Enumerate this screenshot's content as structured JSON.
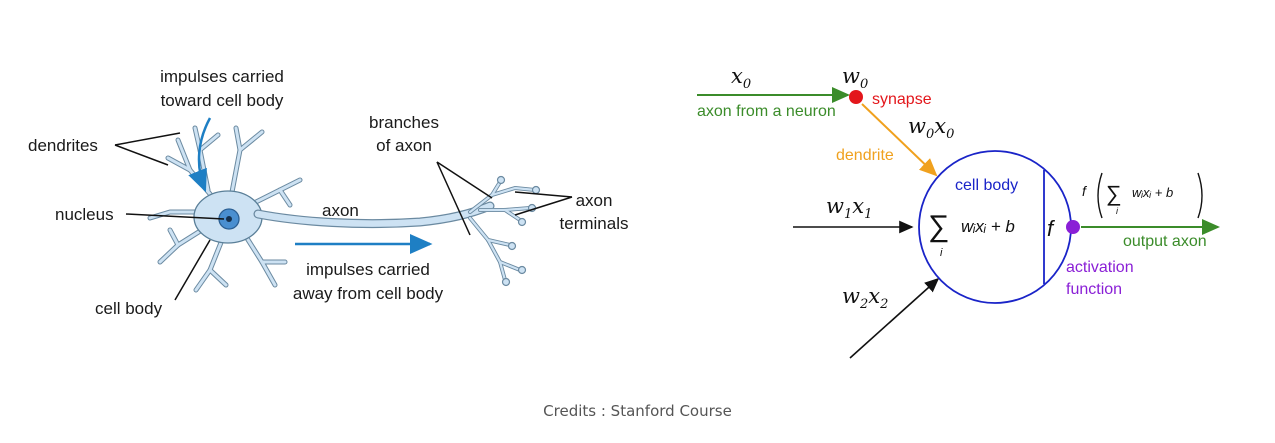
{
  "biological_neuron": {
    "labels": {
      "impulses_toward_1": "impulses carried",
      "impulses_toward_2": "toward cell body",
      "dendrites": "dendrites",
      "nucleus": "nucleus",
      "cell_body": "cell body",
      "axon": "axon",
      "branches_1": "branches",
      "branches_2": "of axon",
      "terminals_1": "axon",
      "terminals_2": "terminals",
      "impulses_away_1": "impulses carried",
      "impulses_away_2": "away from cell body"
    }
  },
  "artificial_neuron": {
    "x0": "x",
    "x0_sub": "0",
    "w0": "w",
    "w0_sub": "0",
    "w0x0_a": "w",
    "w0x0_sub1": "0",
    "w0x0_b": "x",
    "w0x0_sub2": "0",
    "w1x1_a": "w",
    "w1x1_sub1": "1",
    "w1x1_b": "x",
    "w1x1_sub2": "1",
    "w2x2_a": "w",
    "w2x2_sub1": "2",
    "w2x2_b": "x",
    "w2x2_sub2": "2",
    "axon_from_neuron": "axon from a neuron",
    "synapse": "synapse",
    "dendrite": "dendrite",
    "cell_body": "cell body",
    "sum_symbol": "∑",
    "sum_index": "i",
    "sum_body": "wᵢxᵢ + b",
    "f_symbol": "f",
    "output_func_f": "f",
    "output_func_body": "wᵢxᵢ + b",
    "output_axon": "output axon",
    "activation_1": "activation",
    "activation_2": "function",
    "colors": {
      "green": "#3b8c2a",
      "red": "#e3161b",
      "orange": "#f0a11e",
      "blue": "#1a24c8",
      "purple": "#8a1fd6",
      "neuron_blue": "#1e7fc4"
    }
  },
  "credits": "Credits : Stanford Course"
}
